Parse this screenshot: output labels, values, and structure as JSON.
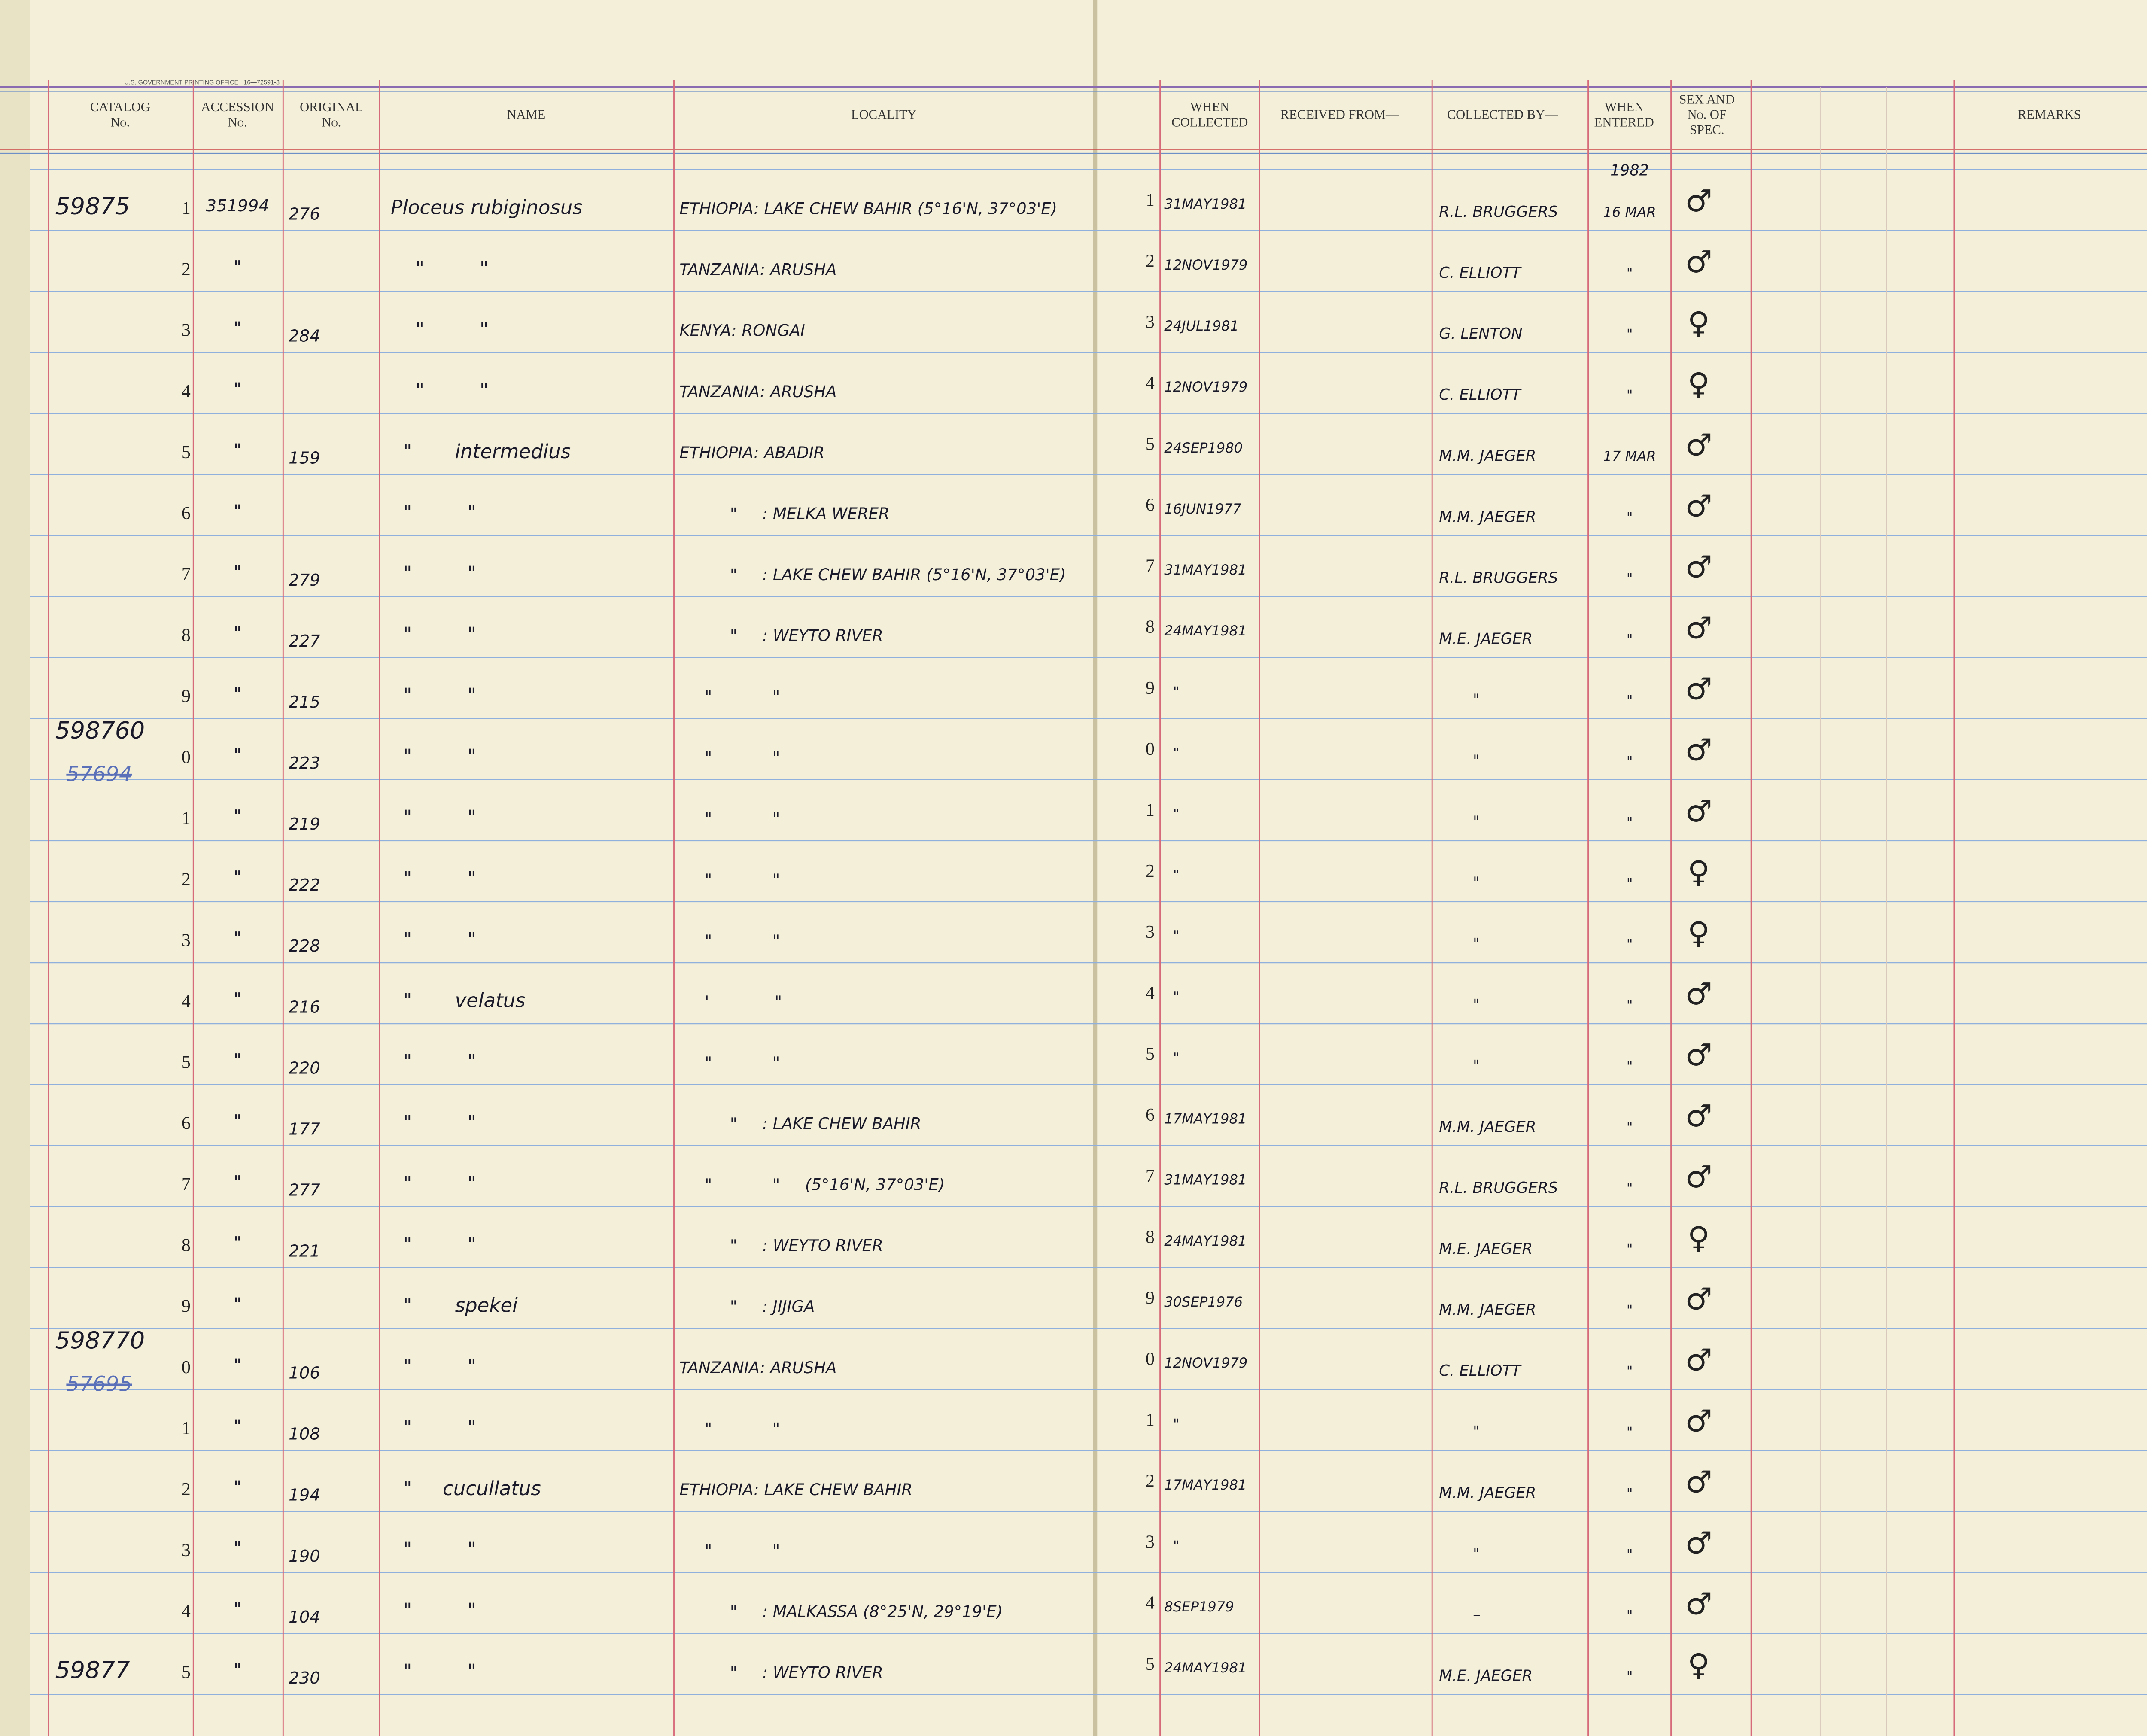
{
  "header": {
    "printer": "U.S. GOVERNMENT PRINTING OFFICE   16—72591-3",
    "columns": [
      [
        "CATALOG",
        "No."
      ],
      [
        "ACCESSION",
        "No."
      ],
      [
        "ORIGINAL",
        "No."
      ],
      [
        "NAME"
      ],
      [
        "LOCALITY"
      ],
      [
        "WHEN",
        "COLLECTED"
      ],
      [
        "RECEIVED FROM—"
      ],
      [
        "COLLECTED BY—"
      ],
      [
        "WHEN",
        "ENTERED"
      ],
      [
        "SEX AND",
        "No. OF",
        "SPEC."
      ],
      [
        "REMARKS"
      ]
    ]
  },
  "rows": [
    {
      "cat": "59875",
      "num": "1",
      "acc": "351994",
      "orig": "276",
      "name": "Ploceus rubiginosus",
      "loc": "ETHIOPIA: LAKE CHEW BAHIR (5°16'N, 37°03'E)",
      "num2": "1",
      "collected": "31MAY1981",
      "by": "R.L. BRUGGERS",
      "year": "1982",
      "entered": "16 MAR",
      "sex": "♂"
    },
    {
      "num": "2",
      "acc": "\"",
      "name": "    \"         \"",
      "loc": "TANZANIA: ARUSHA",
      "num2": "2",
      "collected": "12NOV1979",
      "by": "C. ELLIOTT",
      "entered": "\"",
      "sex": "♂"
    },
    {
      "num": "3",
      "acc": "\"",
      "orig": "284",
      "name": "    \"         \"",
      "loc": "KENYA: RONGAI",
      "num2": "3",
      "collected": "24JUL1981",
      "by": "G. LENTON",
      "entered": "\"",
      "sex": "♀"
    },
    {
      "num": "4",
      "acc": "\"",
      "name": "    \"         \"",
      "loc": "TANZANIA: ARUSHA",
      "num2": "4",
      "collected": "12NOV1979",
      "by": "C. ELLIOTT",
      "entered": "\"",
      "sex": "♀"
    },
    {
      "num": "5",
      "acc": "\"",
      "orig": "159",
      "name": "  \"       intermedius",
      "loc": "ETHIOPIA: ABADIR",
      "num2": "5",
      "collected": "24SEP1980",
      "by": "M.M. JAEGER",
      "entered": "17 MAR",
      "sex": "♂"
    },
    {
      "num": "6",
      "acc": "\"",
      "name": "  \"         \"",
      "loc": "          \"     : MELKA WERER",
      "num2": "6",
      "collected": "16JUN1977",
      "by": "M.M. JAEGER",
      "entered": "\"",
      "sex": "♂"
    },
    {
      "num": "7",
      "acc": "\"",
      "orig": "279",
      "name": "  \"         \"",
      "loc": "          \"     : LAKE CHEW BAHIR (5°16'N, 37°03'E)",
      "num2": "7",
      "collected": "31MAY1981",
      "by": "R.L. BRUGGERS",
      "entered": "\"",
      "sex": "♂"
    },
    {
      "num": "8",
      "acc": "\"",
      "orig": "227",
      "name": "  \"         \"",
      "loc": "          \"     : WEYTO RIVER",
      "num2": "8",
      "collected": "24MAY1981",
      "by": "M.E. JAEGER",
      "entered": "\"",
      "sex": "♂"
    },
    {
      "num": "9",
      "acc": "\"",
      "orig": "215",
      "name": "  \"         \"",
      "loc": "     \"            \"",
      "num2": "9",
      "collected": "  \"",
      "by": "       \"",
      "entered": "\"",
      "sex": "♂"
    },
    {
      "cat": "598760",
      "struck": "57694",
      "num": "0",
      "acc": "\"",
      "orig": "223",
      "name": "  \"         \"",
      "loc": "     \"            \"",
      "num2": "0",
      "collected": "  \"",
      "by": "       \"",
      "entered": "\"",
      "sex": "♂"
    },
    {
      "num": "1",
      "acc": "\"",
      "orig": "219",
      "name": "  \"         \"",
      "loc": "     \"            \"",
      "num2": "1",
      "collected": "  \"",
      "by": "       \"",
      "entered": "\"",
      "sex": "♂"
    },
    {
      "num": "2",
      "acc": "\"",
      "orig": "222",
      "name": "  \"         \"",
      "loc": "     \"            \"",
      "num2": "2",
      "collected": "  \"",
      "by": "       \"",
      "entered": "\"",
      "sex": "♀"
    },
    {
      "num": "3",
      "acc": "\"",
      "orig": "228",
      "name": "  \"         \"",
      "loc": "     \"            \"",
      "num2": "3",
      "collected": "  \"",
      "by": "       \"",
      "entered": "\"",
      "sex": "♀"
    },
    {
      "num": "4",
      "acc": "\"",
      "orig": "216",
      "name": "  \"       velatus",
      "loc": "     '             \"",
      "num2": "4",
      "collected": "  \"",
      "by": "       \"",
      "entered": "\"",
      "sex": "♂"
    },
    {
      "num": "5",
      "acc": "\"",
      "orig": "220",
      "name": "  \"         \"",
      "loc": "     \"            \"",
      "num2": "5",
      "collected": "  \"",
      "by": "       \"",
      "entered": "\"",
      "sex": "♂"
    },
    {
      "num": "6",
      "acc": "\"",
      "orig": "177",
      "name": "  \"         \"",
      "loc": "          \"     : LAKE CHEW BAHIR",
      "num2": "6",
      "collected": "17MAY1981",
      "by": "M.M. JAEGER",
      "entered": "\"",
      "sex": "♂"
    },
    {
      "num": "7",
      "acc": "\"",
      "orig": "277",
      "name": "  \"         \"",
      "loc": "     \"            \"     (5°16'N, 37°03'E)",
      "num2": "7",
      "collected": "31MAY1981",
      "by": "R.L. BRUGGERS",
      "entered": "\"",
      "sex": "♂"
    },
    {
      "num": "8",
      "acc": "\"",
      "orig": "221",
      "name": "  \"         \"",
      "loc": "          \"     : WEYTO RIVER",
      "num2": "8",
      "collected": "24MAY1981",
      "by": "M.E. JAEGER",
      "entered": "\"",
      "sex": "♀"
    },
    {
      "num": "9",
      "acc": "\"",
      "name": "  \"       spekei",
      "loc": "          \"     : JIJIGA",
      "num2": "9",
      "collected": "30SEP1976",
      "by": "M.M. JAEGER",
      "entered": "\"",
      "sex": "♂"
    },
    {
      "cat": "598770",
      "struck": "57695",
      "num": "0",
      "acc": "\"",
      "orig": "106",
      "name": "  \"         \"",
      "loc": "TANZANIA: ARUSHA",
      "num2": "0",
      "collected": "12NOV1979",
      "by": "C. ELLIOTT",
      "entered": "\"",
      "sex": "♂"
    },
    {
      "num": "1",
      "acc": "\"",
      "orig": "108",
      "name": "  \"         \"",
      "loc": "     \"            \"",
      "num2": "1",
      "collected": "  \"",
      "by": "       \"",
      "entered": "\"",
      "sex": "♂"
    },
    {
      "num": "2",
      "acc": "\"",
      "orig": "194",
      "name": "  \"     cucullatus",
      "loc": "ETHIOPIA: LAKE CHEW BAHIR",
      "num2": "2",
      "collected": "17MAY1981",
      "by": "M.M. JAEGER",
      "entered": "\"",
      "sex": "♂"
    },
    {
      "num": "3",
      "acc": "\"",
      "orig": "190",
      "name": "  \"         \"",
      "loc": "     \"            \"",
      "num2": "3",
      "collected": "  \"",
      "by": "       \"",
      "entered": "\"",
      "sex": "♂"
    },
    {
      "num": "4",
      "acc": "\"",
      "orig": "104",
      "name": "  \"         \"",
      "loc": "          \"     : MALKASSA (8°25'N, 29°19'E)",
      "num2": "4",
      "collected": "8SEP1979",
      "by": "       –",
      "entered": "\"",
      "sex": "♂"
    },
    {
      "cat": "59877",
      "num": "5",
      "acc": "\"",
      "orig": "230",
      "name": "  \"         \"",
      "loc": "          \"     : WEYTO RIVER",
      "num2": "5",
      "collected": "24MAY1981",
      "by": "M.E. JAEGER",
      "entered": "\"",
      "sex": "♀"
    }
  ]
}
